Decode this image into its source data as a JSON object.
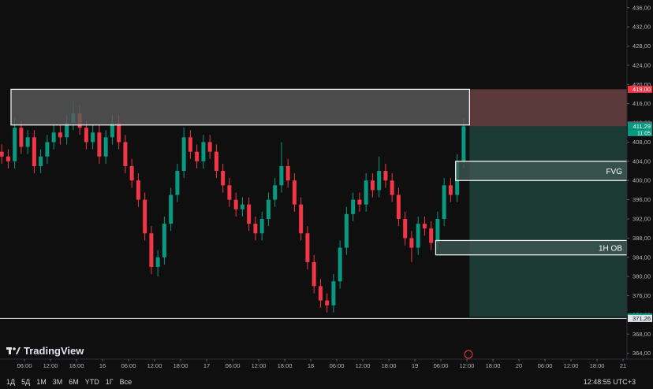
{
  "chart_data": {
    "type": "candlestick",
    "x": [
      0.75,
      2.25,
      3.75,
      5.25,
      6.75,
      8.25,
      9.75,
      11.25,
      12.75,
      14.25,
      15.75,
      17.25,
      18.75,
      20.25,
      21.75,
      23.25,
      24.75,
      26.25,
      27.75,
      29.25,
      30.75,
      32.25,
      33.75,
      35.25,
      36.75,
      38.25,
      39.75,
      41.25,
      42.75,
      44.25,
      45.75,
      47.25,
      48.75,
      50.25,
      51.75,
      53.25,
      54.75,
      56.25,
      57.75,
      59.25,
      60.75,
      62.25,
      63.75,
      65.25,
      66.75,
      68.25,
      69.75,
      71.25,
      72.75,
      74.25,
      75.75,
      77.25,
      78.75,
      80.25,
      81.75,
      83.25,
      84.75,
      86.25,
      87.75,
      89.25,
      90.75,
      92.25,
      93.75,
      95.25,
      96.75,
      98.25,
      99.75,
      101.25,
      102.75,
      104.25,
      105.75,
      107.25
    ],
    "open": [
      406,
      405,
      404,
      411,
      407,
      409,
      403,
      405,
      408,
      410,
      409,
      412,
      414,
      411,
      408,
      410,
      405,
      409,
      412,
      408,
      403,
      400,
      396,
      389,
      382,
      384,
      391,
      397,
      402,
      409,
      406,
      404,
      408,
      406,
      402,
      399,
      396,
      394,
      395,
      391,
      389,
      392,
      396,
      399,
      403,
      400,
      395,
      389,
      383,
      378,
      375,
      374,
      379,
      386,
      393,
      396,
      395,
      400,
      398,
      402,
      400,
      397,
      392,
      388,
      386,
      391,
      390,
      387,
      392,
      399,
      397,
      404
    ],
    "high": [
      407.5,
      406.5,
      413,
      412.5,
      410.5,
      410.5,
      406.5,
      409.5,
      411.5,
      411.5,
      413.5,
      416.5,
      415.5,
      412.5,
      411.5,
      411.5,
      410.5,
      413.5,
      413.5,
      409.5,
      404.5,
      401.5,
      397.5,
      390.5,
      385.5,
      392.5,
      398.5,
      403.5,
      411,
      410.5,
      407.5,
      409.5,
      409.5,
      407.5,
      403.5,
      400.5,
      397.5,
      396.5,
      396.5,
      392.5,
      393.5,
      397.5,
      400.5,
      408,
      404.5,
      401.5,
      396.5,
      390.5,
      384.5,
      379.5,
      376.5,
      380.5,
      387.5,
      394.5,
      397.5,
      397.5,
      401.5,
      401.5,
      405,
      403.5,
      401.5,
      398.5,
      393.5,
      389.5,
      392.5,
      392.5,
      391.5,
      393.5,
      400.5,
      400.5,
      405.5,
      413
    ],
    "low": [
      403.5,
      402.5,
      402.5,
      405.5,
      405.5,
      401.5,
      401.5,
      403.5,
      406.5,
      407.5,
      407.5,
      410.5,
      409.5,
      406.5,
      406.5,
      403.5,
      403.5,
      407.5,
      406.5,
      401.5,
      398.5,
      394.5,
      387.5,
      380.5,
      380,
      382.5,
      389.5,
      395.5,
      400.5,
      404.5,
      402.5,
      402.5,
      404.5,
      400.5,
      397.5,
      394.5,
      392.5,
      392.5,
      389.5,
      387.5,
      387.5,
      390.5,
      394.5,
      397.5,
      398.5,
      393.5,
      387.5,
      381.5,
      376.5,
      373.5,
      372.5,
      372.5,
      377.5,
      384.5,
      391.5,
      393.5,
      393.5,
      396.5,
      396.5,
      398.5,
      395.5,
      390.5,
      386.5,
      383,
      384.5,
      388.5,
      385.5,
      385.5,
      390.5,
      395.5,
      395.5,
      402.5
    ],
    "close": [
      405,
      404,
      411,
      407,
      409,
      403,
      405,
      408,
      410,
      409,
      412,
      414,
      411,
      408,
      410,
      405,
      409,
      412,
      408,
      403,
      400,
      396,
      389,
      382,
      384,
      391,
      397,
      402,
      409,
      406,
      404,
      408,
      406,
      402,
      399,
      396,
      394,
      395,
      391,
      389,
      392,
      396,
      399,
      403,
      400,
      395,
      389,
      383,
      378,
      375,
      374,
      379,
      386,
      393,
      396,
      395,
      400,
      398,
      402,
      400,
      397,
      392,
      388,
      386,
      391,
      390,
      387,
      392,
      399,
      397,
      404,
      411.29
    ],
    "up_color": "#089981",
    "down_color": "#f23645",
    "xlim": [
      0.36,
      144.9
    ],
    "ylim": [
      362.8,
      437.6
    ],
    "xticks": [
      {
        "value": 6,
        "label": "06:00"
      },
      {
        "value": 12,
        "label": "12:00"
      },
      {
        "value": 18,
        "label": "18:00"
      },
      {
        "value": 24,
        "label": "16"
      },
      {
        "value": 30,
        "label": "06:00"
      },
      {
        "value": 36,
        "label": "12:00"
      },
      {
        "value": 42,
        "label": "18:00"
      },
      {
        "value": 48,
        "label": "17"
      },
      {
        "value": 54,
        "label": "06:00"
      },
      {
        "value": 60,
        "label": "12:00"
      },
      {
        "value": 66,
        "label": "18:00"
      },
      {
        "value": 72,
        "label": "18"
      },
      {
        "value": 78,
        "label": "06:00"
      },
      {
        "value": 84,
        "label": "12:00"
      },
      {
        "value": 90,
        "label": "18:00"
      },
      {
        "value": 96,
        "label": "19"
      },
      {
        "value": 102,
        "label": "06:00"
      },
      {
        "value": 108,
        "label": "12:00"
      },
      {
        "value": 114,
        "label": "18:00"
      },
      {
        "value": 120,
        "label": "20"
      },
      {
        "value": 126,
        "label": "06:00"
      },
      {
        "value": 132,
        "label": "12:00"
      },
      {
        "value": 138,
        "label": "18:00"
      },
      {
        "value": 144,
        "label": "21"
      }
    ],
    "yticks": [
      {
        "value": 364,
        "label": "364,00"
      },
      {
        "value": 368,
        "label": "368,00"
      },
      {
        "value": 372,
        "label": "372,00"
      },
      {
        "value": 376,
        "label": "376,00"
      },
      {
        "value": 380,
        "label": "380,00"
      },
      {
        "value": 384,
        "label": "384,00"
      },
      {
        "value": 388,
        "label": "388,00"
      },
      {
        "value": 392,
        "label": "392,00"
      },
      {
        "value": 396,
        "label": "396,00"
      },
      {
        "value": 400,
        "label": "400,00"
      },
      {
        "value": 404,
        "label": "404,00"
      },
      {
        "value": 408,
        "label": "408,00"
      },
      {
        "value": 412,
        "label": "412,00"
      },
      {
        "value": 416,
        "label": "416,00"
      },
      {
        "value": 420,
        "label": "420,00"
      },
      {
        "value": 424,
        "label": "424,00"
      },
      {
        "value": 428,
        "label": "428,00"
      },
      {
        "value": 432,
        "label": "432,00"
      },
      {
        "value": 436,
        "label": "436,00"
      }
    ],
    "zones": [
      {
        "top": 419,
        "bottom": 411.56,
        "start": 2.9,
        "end": 108.6,
        "color": "#5a5a5a"
      },
      {
        "label": "FVG",
        "top": 404,
        "bottom": 400,
        "start": 105.4,
        "end": 144.9,
        "color": "#3d5650"
      },
      {
        "label": "1H OB",
        "top": 387.5,
        "bottom": 384.5,
        "start": 100.8,
        "end": 144.9,
        "color": "#3d5650"
      }
    ],
    "position": {
      "stop": 419,
      "entry": 411.29,
      "target": 371.59,
      "start": 108.6,
      "end": 144.9,
      "stop_color": "#5c3a3c",
      "target_color": "#1a3a33"
    },
    "level": 371.26,
    "price_labels": [
      {
        "value": 419,
        "label": "419,00",
        "color": "#f23645"
      },
      {
        "value": 411.56,
        "label": "411,56",
        "color": "#5d606b"
      },
      {
        "value": 411.29,
        "label": "411,29",
        "color": "#089981"
      },
      {
        "value": 371.59,
        "label": "371,59",
        "color": "#089981"
      },
      {
        "value": 371.26,
        "label": "371,26",
        "color": "#e0e3eb"
      }
    ],
    "countdown": "11:05"
  },
  "logo": "TradingView",
  "toolbar": {
    "ranges": [
      "1Д",
      "5Д",
      "1М",
      "3М",
      "6М",
      "YTD",
      "1Г",
      "Все"
    ],
    "clock": "12:48:55 UTC+3"
  }
}
